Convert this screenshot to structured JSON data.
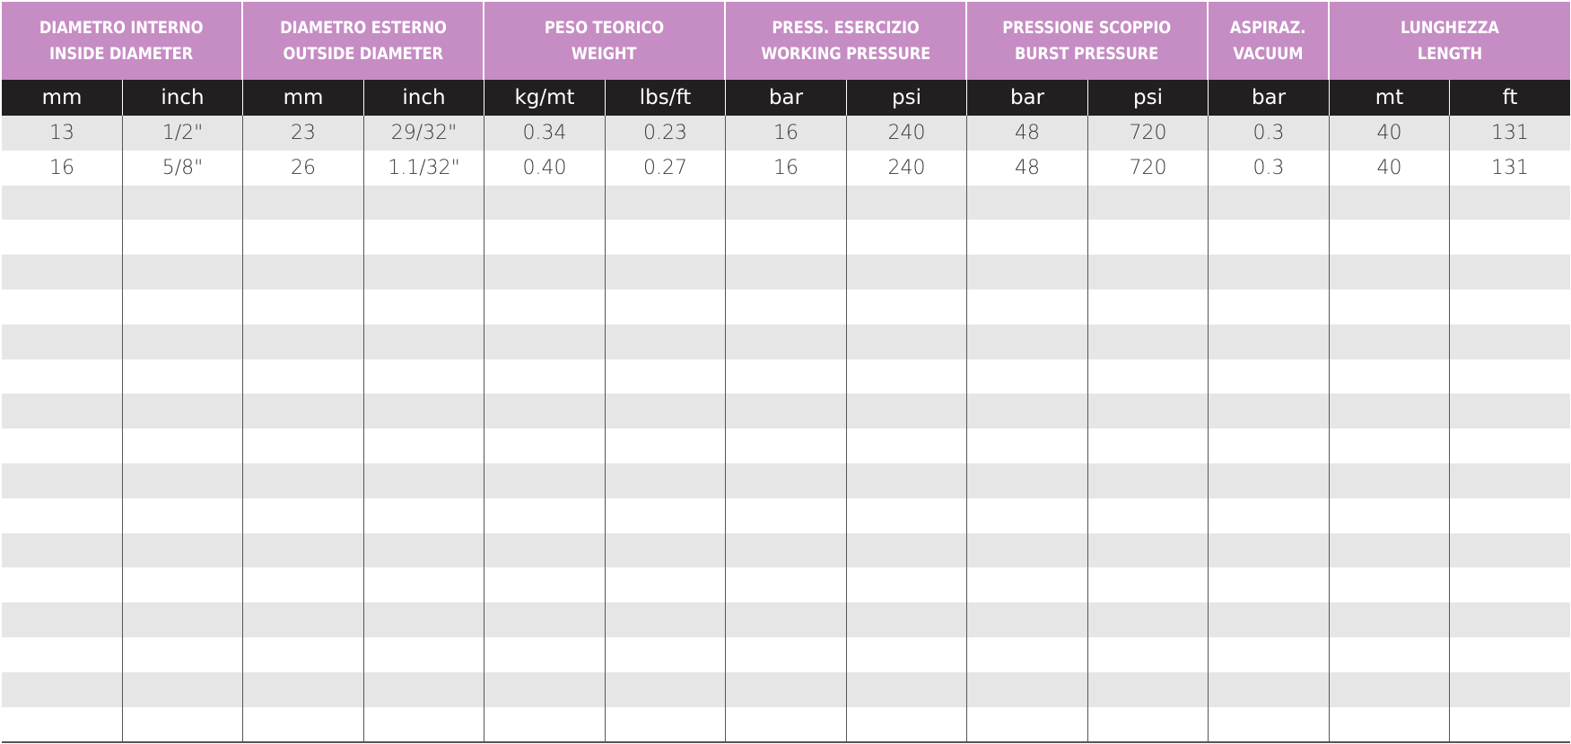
{
  "groups": [
    {
      "line1": "DIAMETRO INTERNO",
      "line2": "INSIDE DIAMETER"
    },
    {
      "line1": "DIAMETRO ESTERNO",
      "line2": "OUTSIDE DIAMETER"
    },
    {
      "line1": "PESO TEORICO",
      "line2": "WEIGHT"
    },
    {
      "line1": "PRESS. ESERCIZIO",
      "line2": "WORKING PRESSURE"
    },
    {
      "line1": "PRESSIONE SCOPPIO",
      "line2": "BURST PRESSURE"
    },
    {
      "line1": "ASPIRAZ.",
      "line2": "VACUUM"
    },
    {
      "line1": "LUNGHEZZA",
      "line2": "LENGTH"
    }
  ],
  "units": [
    "mm",
    "inch",
    "mm",
    "inch",
    "kg/mt",
    "lbs/ft",
    "bar",
    "psi",
    "bar",
    "psi",
    "bar",
    "mt",
    "ft"
  ],
  "rows": [
    [
      "13",
      "1/2\"",
      "23",
      "29/32\"",
      "0.34",
      "0.23",
      "16",
      "240",
      "48",
      "720",
      "0.3",
      "40",
      "131"
    ],
    [
      "16",
      "5/8\"",
      "26",
      "1.1/32\"",
      "0.40",
      "0.27",
      "16",
      "240",
      "48",
      "720",
      "0.3",
      "40",
      "131"
    ]
  ]
}
